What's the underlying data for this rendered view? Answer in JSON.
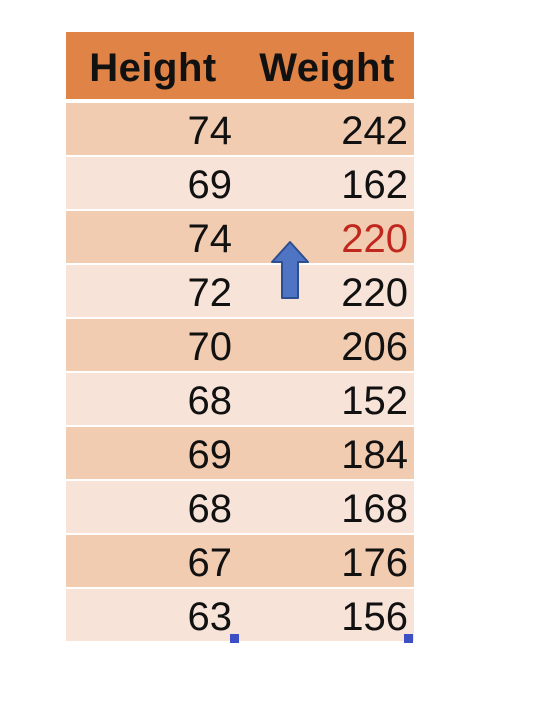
{
  "table": {
    "headers": [
      "Height",
      "Weight"
    ],
    "rows": [
      {
        "height": "74",
        "weight": "242"
      },
      {
        "height": "69",
        "weight": "162"
      },
      {
        "height": "74",
        "weight": "220"
      },
      {
        "height": "72",
        "weight": "220"
      },
      {
        "height": "70",
        "weight": "206"
      },
      {
        "height": "68",
        "weight": "152"
      },
      {
        "height": "69",
        "weight": "184"
      },
      {
        "height": "68",
        "weight": "168"
      },
      {
        "height": "67",
        "weight": "176"
      },
      {
        "height": "63",
        "weight": "156"
      }
    ],
    "highlighted_row": 2
  },
  "colors": {
    "header_bg": "#df8446",
    "row_dark": "#f2ccb1",
    "row_light": "#f8e3d8",
    "highlight_text": "#c0281e",
    "arrow_fill": "#4f74c4",
    "arrow_stroke": "#2e4f8f",
    "selection_handle": "#3d4fc4"
  },
  "icons": {
    "arrow": "up-arrow-icon",
    "handle": "selection-handle-icon"
  }
}
